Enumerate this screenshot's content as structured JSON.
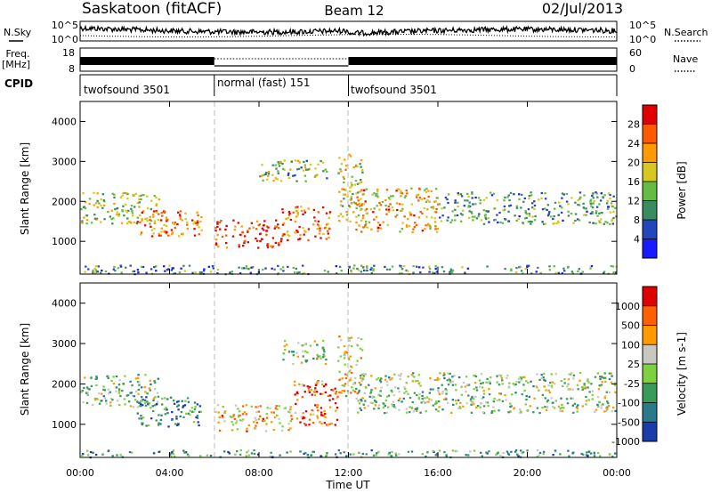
{
  "header": {
    "title": "Saskatoon (fitACF)",
    "beam": "Beam 12",
    "date": "02/Jul/2013"
  },
  "nsky_panel": {
    "left_label": "N.Sky",
    "left_ticks": [
      "10^5",
      "10^0"
    ],
    "right_label": "N.Search",
    "right_ticks": [
      "10^5",
      "10^0"
    ]
  },
  "freq_panel": {
    "left_label_top": "Freq.",
    "left_label_bottom": "[MHz]",
    "left_ticks": [
      "18",
      "8"
    ],
    "right_label": "Nave",
    "right_ticks": [
      "60",
      "0"
    ]
  },
  "cpid_panel": {
    "label": "CPID",
    "segments": [
      {
        "start": 0,
        "end": 6,
        "label": "twofsound 3501"
      },
      {
        "start": 6,
        "end": 12,
        "label": "normal (fast) 151"
      },
      {
        "start": 12,
        "end": 24,
        "label": "twofsound 3501"
      }
    ]
  },
  "chart_data": [
    {
      "type": "heatmap",
      "name": "power",
      "xlabel": "",
      "ylabel": "Slant Range [km]",
      "xlim": [
        0,
        24
      ],
      "ylim": [
        180,
        4500
      ],
      "yticks": [
        "1000",
        "2000",
        "3000",
        "4000"
      ],
      "colorbar": {
        "label": "Power [dB]",
        "ticks": [
          "4",
          "8",
          "12",
          "16",
          "20",
          "24",
          "28"
        ],
        "colors": [
          "#1a1aff",
          "#2346b8",
          "#3a8a62",
          "#66bb44",
          "#d6c820",
          "#ff9a00",
          "#ff5a00",
          "#e00000"
        ]
      },
      "scatter_bands": [
        {
          "t0": 0,
          "t1": 3.5,
          "r0": 1450,
          "r1": 2250,
          "level": 0.5
        },
        {
          "t0": 2.5,
          "t1": 5.5,
          "r0": 1150,
          "r1": 1800,
          "level": 0.75
        },
        {
          "t0": 6,
          "t1": 9,
          "r0": 850,
          "r1": 1550,
          "level": 0.9
        },
        {
          "t0": 9,
          "t1": 11.2,
          "r0": 1050,
          "r1": 1900,
          "level": 0.8
        },
        {
          "t0": 11.5,
          "t1": 12.6,
          "r0": 1500,
          "r1": 3200,
          "level": 0.55
        },
        {
          "t0": 12.3,
          "t1": 16,
          "r0": 1250,
          "r1": 2350,
          "level": 0.65
        },
        {
          "t0": 16,
          "t1": 24,
          "r0": 1450,
          "r1": 2250,
          "level": 0.35
        },
        {
          "t0": 8,
          "t1": 11,
          "r0": 2500,
          "r1": 3050,
          "level": 0.45
        },
        {
          "t0": 0,
          "t1": 24,
          "r0": 200,
          "r1": 420,
          "level": 0.3
        }
      ]
    },
    {
      "type": "heatmap",
      "name": "velocity",
      "xlabel": "Time UT",
      "ylabel": "Slant Range [km]",
      "xlim": [
        0,
        24
      ],
      "ylim": [
        180,
        4500
      ],
      "yticks": [
        "1000",
        "2000",
        "3000",
        "4000"
      ],
      "xticks": [
        "00:00",
        "04:00",
        "08:00",
        "12:00",
        "16:00",
        "20:00",
        "00:00"
      ],
      "colorbar": {
        "label": "Velocity [m s-1]",
        "ticks": [
          "1000",
          "500",
          "100",
          "25",
          "-25",
          "-100",
          "-500",
          "-1000"
        ],
        "colors": [
          "#1a3caa",
          "#2a7a8a",
          "#3a9a5a",
          "#7fd040",
          "#c8c8c0",
          "#ff9a00",
          "#ff6000",
          "#e00000"
        ]
      },
      "scatter_bands": [
        {
          "t0": 0,
          "t1": 3.5,
          "r0": 1450,
          "r1": 2250,
          "level": 0.45
        },
        {
          "t0": 2.5,
          "t1": 5.5,
          "r0": 950,
          "r1": 1700,
          "level": 0.2
        },
        {
          "t0": 6,
          "t1": 9.5,
          "r0": 850,
          "r1": 1500,
          "level": 0.65
        },
        {
          "t0": 9.5,
          "t1": 11.6,
          "r0": 1000,
          "r1": 2100,
          "level": 0.85
        },
        {
          "t0": 11.5,
          "t1": 12.6,
          "r0": 1600,
          "r1": 3200,
          "level": 0.6
        },
        {
          "t0": 12.3,
          "t1": 24,
          "r0": 1300,
          "r1": 2300,
          "level": 0.45
        },
        {
          "t0": 9,
          "t1": 11,
          "r0": 2500,
          "r1": 3100,
          "level": 0.45
        },
        {
          "t0": 0,
          "t1": 24,
          "r0": 200,
          "r1": 380,
          "level": 0.3
        }
      ]
    }
  ]
}
